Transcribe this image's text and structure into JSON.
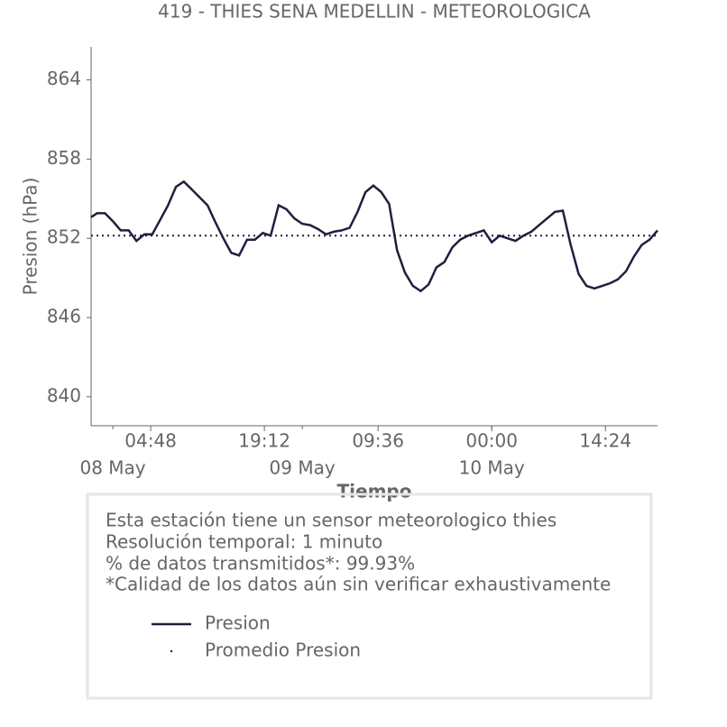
{
  "chart_data": {
    "type": "line",
    "title": "419 - THIES SENA MEDELLIN - METEOROLOGICA",
    "xlabel": "Tiempo",
    "ylabel": "Presion (hPa)",
    "xlim": [
      "07 May 21:15",
      "10 May 21:00"
    ],
    "ylim": [
      837.8,
      866.5
    ],
    "yticks": [
      840,
      846,
      852,
      858,
      864
    ],
    "xticks": [
      {
        "value": "08 May 04:48",
        "label": "04:48"
      },
      {
        "value": "08 May 19:12",
        "label": "19:12"
      },
      {
        "value": "09 May 09:36",
        "label": "09:36"
      },
      {
        "value": "10 May 00:00",
        "label": "00:00"
      },
      {
        "value": "10 May 14:24",
        "label": "14:24"
      }
    ],
    "xticks_minor": [
      {
        "value": "08 May 00:00",
        "label": "08 May"
      },
      {
        "value": "09 May 00:00",
        "label": "09 May"
      },
      {
        "value": "10 May 00:00",
        "label": "10 May"
      }
    ],
    "x": [
      "07 May 21:15",
      "07 May 22:00",
      "07 May 23:00",
      "08 May 00:00",
      "08 May 01:00",
      "08 May 02:00",
      "08 May 03:00",
      "08 May 04:00",
      "08 May 05:00",
      "08 May 06:00",
      "08 May 07:00",
      "08 May 08:00",
      "08 May 09:00",
      "08 May 10:00",
      "08 May 11:00",
      "08 May 12:00",
      "08 May 13:00",
      "08 May 14:00",
      "08 May 15:00",
      "08 May 16:00",
      "08 May 17:00",
      "08 May 18:00",
      "08 May 19:00",
      "08 May 20:00",
      "08 May 21:00",
      "08 May 22:00",
      "08 May 23:00",
      "09 May 00:00",
      "09 May 01:00",
      "09 May 02:00",
      "09 May 03:00",
      "09 May 04:00",
      "09 May 05:00",
      "09 May 06:00",
      "09 May 07:00",
      "09 May 08:00",
      "09 May 09:00",
      "09 May 10:00",
      "09 May 11:00",
      "09 May 12:00",
      "09 May 13:00",
      "09 May 14:00",
      "09 May 15:00",
      "09 May 16:00",
      "09 May 17:00",
      "09 May 18:00",
      "09 May 19:00",
      "09 May 20:00",
      "09 May 21:00",
      "09 May 22:00",
      "09 May 23:00",
      "10 May 00:00",
      "10 May 01:00",
      "10 May 02:00",
      "10 May 03:00",
      "10 May 04:00",
      "10 May 05:00",
      "10 May 06:00",
      "10 May 07:00",
      "10 May 08:00",
      "10 May 09:00",
      "10 May 10:00",
      "10 May 11:00",
      "10 May 12:00",
      "10 May 13:00",
      "10 May 14:00",
      "10 May 15:00",
      "10 May 16:00",
      "10 May 17:00",
      "10 May 18:00",
      "10 May 19:00",
      "10 May 20:00",
      "10 May 21:00"
    ],
    "series": [
      {
        "name": "Presion",
        "color": "#1f1f3f",
        "values": [
          853.6,
          853.9,
          853.9,
          853.3,
          852.6,
          852.6,
          851.8,
          852.3,
          852.3,
          853.4,
          854.5,
          855.9,
          856.3,
          855.7,
          855.1,
          854.5,
          853.2,
          852.0,
          850.9,
          850.7,
          851.9,
          851.9,
          852.4,
          852.2,
          854.5,
          854.2,
          853.5,
          853.1,
          853.0,
          852.7,
          852.3,
          852.5,
          852.6,
          852.8,
          854.0,
          855.5,
          856.0,
          855.5,
          854.6,
          851.1,
          849.4,
          848.4,
          848.0,
          848.5,
          849.8,
          850.2,
          851.3,
          851.9,
          852.2,
          852.4,
          852.6,
          851.7,
          852.2,
          852.0,
          851.8,
          852.2,
          852.5,
          853.0,
          853.5,
          854.0,
          854.1,
          851.5,
          849.3,
          848.4,
          848.2,
          848.4,
          848.6,
          848.9,
          849.5,
          850.6,
          851.5,
          851.9,
          852.6
        ]
      },
      {
        "name": "Promedio Presion",
        "color": "#1f1f3f",
        "value": 852.2
      }
    ],
    "info": [
      "Esta estación tiene un sensor meteorologico thies",
      "Resolución temporal: 1 minuto",
      "% de datos transmitidos*: 99.93%",
      "*Calidad de los datos aún sin verificar exhaustivamente"
    ]
  }
}
